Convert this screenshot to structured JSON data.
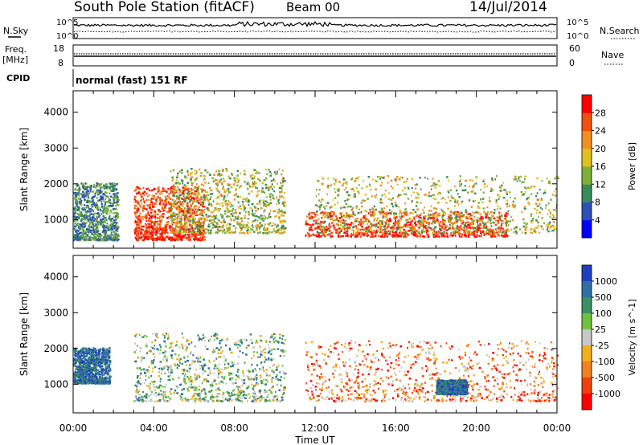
{
  "header": {
    "station": "South Pole Station (fitACF)",
    "beam": "Beam 00",
    "date": "14/Jul/2014"
  },
  "panels": {
    "nsky_label": "N.Sky",
    "nsearch_label": "N.Search",
    "freq_label_1": "Freq.",
    "freq_label_2": "[MHz]",
    "nave_label": "Nave",
    "cpid_label": "CPID",
    "cpid_text": "normal (fast) 151 RF",
    "sky_tick_top": "10^5",
    "sky_tick_bottom": "10^0",
    "freq_tick_top": "18",
    "freq_tick_bottom": "8",
    "nave_tick_top": "60",
    "nave_tick_bottom": "0"
  },
  "chart_data": [
    {
      "type": "heatmap",
      "ylabel": "Slant Range [km]",
      "xlabel": "Time UT",
      "x_ticks": [
        "00:00",
        "04:00",
        "08:00",
        "12:00",
        "16:00",
        "20:00",
        "00:00"
      ],
      "y_ticks": [
        1000,
        2000,
        3000,
        4000
      ],
      "ylim": [
        200,
        4600
      ],
      "xlim_hours": [
        0,
        24
      ],
      "colorbar": {
        "label": "Power [dB]",
        "ticks": [
          "4",
          "8",
          "12",
          "16",
          "20",
          "24",
          "28"
        ],
        "colors": [
          "#0000ff",
          "#3050b8",
          "#3a8a5a",
          "#7fb03a",
          "#e0c020",
          "#f09020",
          "#f05010",
          "#ff0000"
        ]
      },
      "echo_regions": [
        {
          "t0": 0.0,
          "t1": 2.2,
          "r0": 400,
          "r1": 2000,
          "level": "low"
        },
        {
          "t0": 3.0,
          "t1": 6.5,
          "r0": 400,
          "r1": 1900,
          "level": "high"
        },
        {
          "t0": 4.8,
          "t1": 10.5,
          "r0": 600,
          "r1": 2400,
          "level": "mid"
        },
        {
          "t0": 11.5,
          "t1": 21.5,
          "r0": 500,
          "r1": 1200,
          "level": "high"
        },
        {
          "t0": 12.0,
          "t1": 24.0,
          "r0": 600,
          "r1": 2200,
          "level": "mid"
        }
      ]
    },
    {
      "type": "heatmap",
      "ylabel": "Slant Range [km]",
      "xlabel": "Time UT",
      "x_ticks": [
        "00:00",
        "04:00",
        "08:00",
        "12:00",
        "16:00",
        "20:00",
        "00:00"
      ],
      "y_ticks": [
        1000,
        2000,
        3000,
        4000
      ],
      "ylim": [
        200,
        4600
      ],
      "xlim_hours": [
        0,
        24
      ],
      "colorbar": {
        "label": "Velocity [m s^-1]",
        "ticks": [
          "1000",
          "500",
          "100",
          "25",
          "-25",
          "-100",
          "-500",
          "-1000"
        ],
        "colors": [
          "#2040c0",
          "#3070a0",
          "#3a9060",
          "#70c040",
          "#c8c8c8",
          "#f0b020",
          "#f08020",
          "#f04010",
          "#ff0000"
        ]
      },
      "echo_regions": [
        {
          "t0": 0.0,
          "t1": 1.8,
          "r0": 1000,
          "r1": 2000,
          "level": "positive"
        },
        {
          "t0": 3.0,
          "t1": 10.5,
          "r0": 500,
          "r1": 2400,
          "level": "mixed"
        },
        {
          "t0": 11.5,
          "t1": 24.0,
          "r0": 500,
          "r1": 2200,
          "level": "negative"
        },
        {
          "t0": 18.0,
          "t1": 19.5,
          "r0": 700,
          "r1": 1100,
          "level": "positive"
        }
      ]
    }
  ],
  "colors": {
    "axis": "#000000",
    "background": "#ffffff"
  }
}
